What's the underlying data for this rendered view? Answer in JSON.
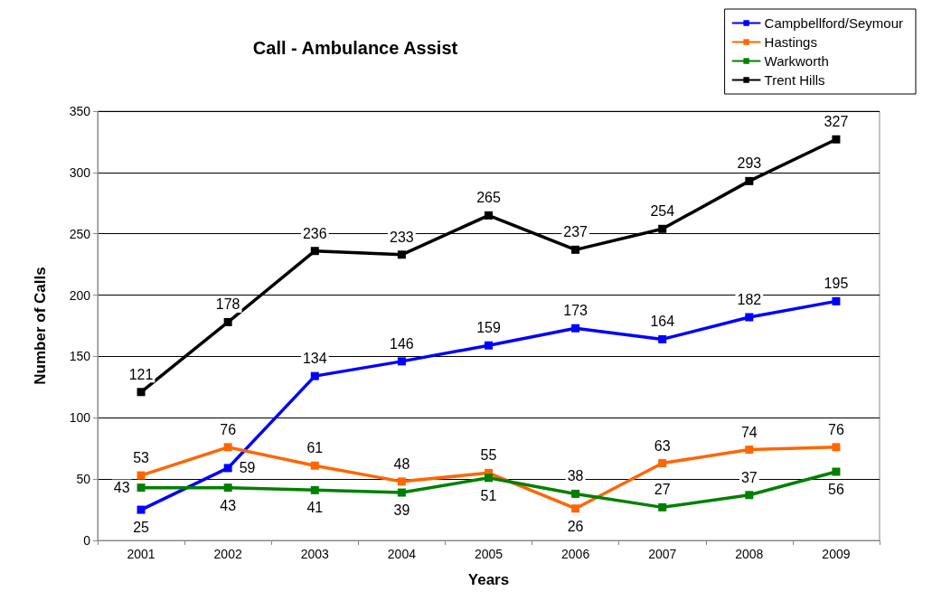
{
  "chart_data": {
    "type": "line",
    "title": "Call - Ambulance Assist",
    "xlabel": "Years",
    "ylabel": "Number of Calls",
    "categories": [
      "2001",
      "2002",
      "2003",
      "2004",
      "2005",
      "2006",
      "2007",
      "2008",
      "2009"
    ],
    "series": [
      {
        "name": "Campbellford/Seymour",
        "color": "#0000ff",
        "values": [
          25,
          59,
          134,
          146,
          159,
          173,
          164,
          182,
          195
        ]
      },
      {
        "name": "Hastings",
        "color": "#ff6600",
        "values": [
          53,
          76,
          61,
          48,
          55,
          26,
          63,
          74,
          76
        ]
      },
      {
        "name": "Warkworth",
        "color": "#008000",
        "values": [
          43,
          43,
          41,
          39,
          51,
          38,
          27,
          37,
          56
        ]
      },
      {
        "name": "Trent Hills",
        "color": "#000000",
        "values": [
          121,
          178,
          236,
          233,
          265,
          237,
          254,
          293,
          327
        ]
      }
    ],
    "ylim": [
      0,
      350
    ],
    "yticks": [
      0,
      50,
      100,
      150,
      200,
      250,
      300,
      350
    ],
    "grid": "y",
    "legend": "top right",
    "marker": "square",
    "line_style": "solid",
    "data_labels": true
  }
}
